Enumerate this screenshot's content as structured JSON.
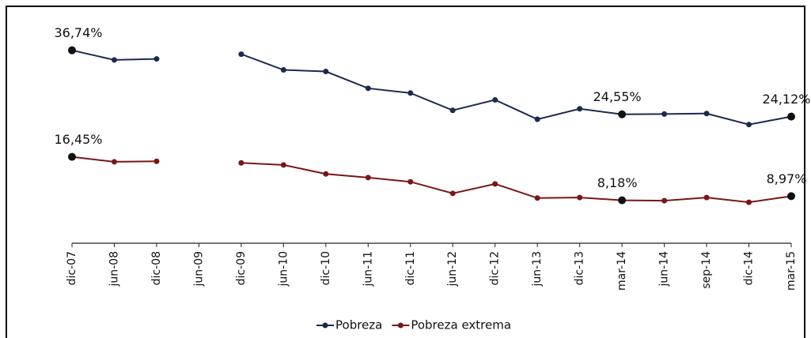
{
  "chart_data": {
    "type": "line",
    "categories": [
      "dic-07",
      "jun-08",
      "dic-08",
      "jun-09",
      "dic-09",
      "jun-10",
      "dic-10",
      "jun-11",
      "dic-11",
      "jun-12",
      "dic-12",
      "jun-13",
      "dic-13",
      "mar-14",
      "jun-14",
      "sep-14",
      "dic-14",
      "mar-15"
    ],
    "series": [
      {
        "name": "Pobreza",
        "color": "#1b2a4e",
        "values": [
          36.74,
          34.9,
          35.1,
          null,
          36.0,
          33.0,
          32.7,
          29.5,
          28.6,
          25.3,
          27.3,
          23.6,
          25.6,
          24.55,
          24.6,
          24.7,
          22.6,
          24.12
        ],
        "value_labels": [
          "36,74%",
          null,
          null,
          null,
          null,
          null,
          null,
          null,
          null,
          null,
          null,
          null,
          null,
          "24,55%",
          null,
          null,
          null,
          "24,12%"
        ]
      },
      {
        "name": "Pobreza extrema",
        "color": "#7a1616",
        "values": [
          16.45,
          15.5,
          15.6,
          null,
          15.3,
          14.9,
          13.2,
          12.5,
          11.7,
          9.5,
          11.3,
          8.6,
          8.7,
          8.18,
          8.1,
          8.7,
          7.8,
          8.97
        ],
        "value_labels": [
          "16,45%",
          null,
          null,
          null,
          null,
          null,
          null,
          null,
          null,
          null,
          null,
          null,
          null,
          "8,18%",
          null,
          null,
          null,
          "8,97%"
        ]
      }
    ],
    "ylim": [
      0,
      43
    ],
    "legend": "bottom"
  }
}
